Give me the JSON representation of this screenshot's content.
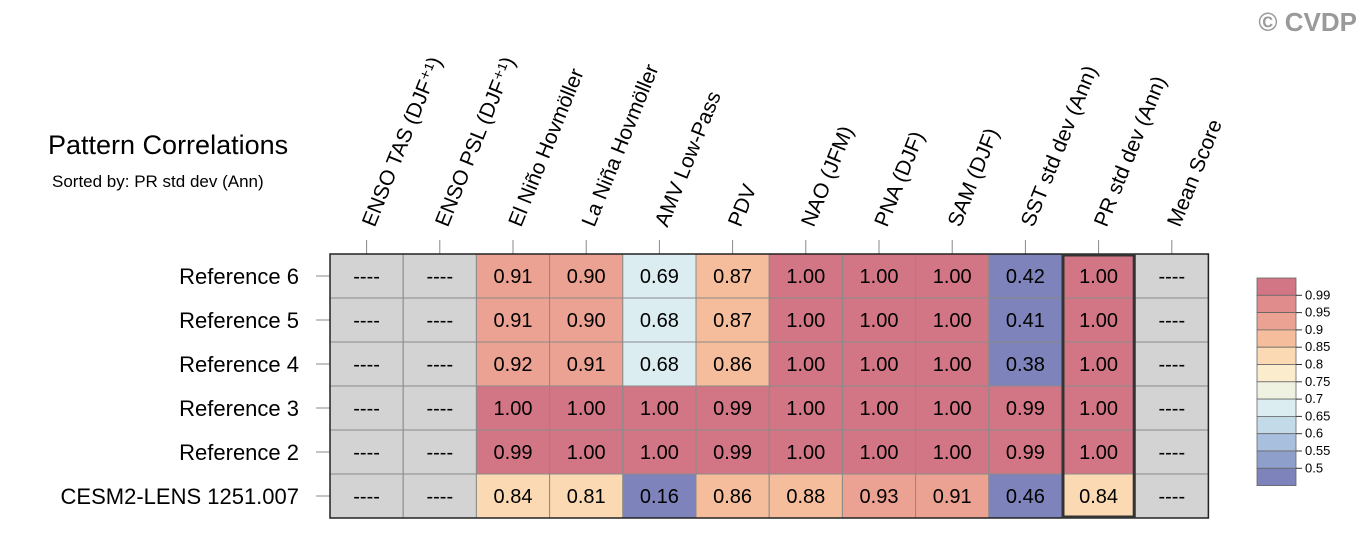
{
  "watermark": "© CVDP",
  "chart_data": {
    "type": "heatmap",
    "title": "Pattern Correlations",
    "subtitle": "Sorted by: PR std dev (Ann)",
    "columns": [
      "ENSO TAS (DJF⁺¹)",
      "ENSO PSL (DJF⁺¹)",
      "El Niño Hovmöller",
      "La Niña Hovmöller",
      "AMV Low-Pass",
      "PDV",
      "NAO (JFM)",
      "PNA (DJF)",
      "SAM (DJF)",
      "SST std dev (Ann)",
      "PR std dev (Ann)",
      "Mean Score"
    ],
    "rows": [
      "Reference 6",
      "Reference 5",
      "Reference 4",
      "Reference 3",
      "Reference 2",
      "CESM2-LENS 1251.007"
    ],
    "values": [
      [
        "----",
        "----",
        "0.91",
        "0.90",
        "0.69",
        "0.87",
        "1.00",
        "1.00",
        "1.00",
        "0.42",
        "1.00",
        "----"
      ],
      [
        "----",
        "----",
        "0.91",
        "0.90",
        "0.68",
        "0.87",
        "1.00",
        "1.00",
        "1.00",
        "0.41",
        "1.00",
        "----"
      ],
      [
        "----",
        "----",
        "0.92",
        "0.91",
        "0.68",
        "0.86",
        "1.00",
        "1.00",
        "1.00",
        "0.38",
        "1.00",
        "----"
      ],
      [
        "----",
        "----",
        "1.00",
        "1.00",
        "1.00",
        "0.99",
        "1.00",
        "1.00",
        "1.00",
        "0.99",
        "1.00",
        "----"
      ],
      [
        "----",
        "----",
        "0.99",
        "1.00",
        "1.00",
        "0.99",
        "1.00",
        "1.00",
        "1.00",
        "0.99",
        "1.00",
        "----"
      ],
      [
        "----",
        "----",
        "0.84",
        "0.81",
        "0.16",
        "0.86",
        "0.88",
        "0.93",
        "0.91",
        "0.46",
        "0.84",
        "----"
      ]
    ],
    "highlighted_column": "PR std dev (Ann)",
    "missing_color": "#d3d3d3",
    "legend": {
      "labels": [
        "0.99",
        "0.95",
        "0.9",
        "0.85",
        "0.8",
        "0.75",
        "0.7",
        "0.65",
        "0.6",
        "0.55",
        "0.5"
      ],
      "colors": [
        "#d27585",
        "#e08c8c",
        "#eba292",
        "#f5bd9b",
        "#fad9b3",
        "#faeccc",
        "#f0f2e1",
        "#dcedf2",
        "#c3dbe8",
        "#a8c0dd",
        "#8f9fcb",
        "#7e84bb"
      ]
    }
  }
}
